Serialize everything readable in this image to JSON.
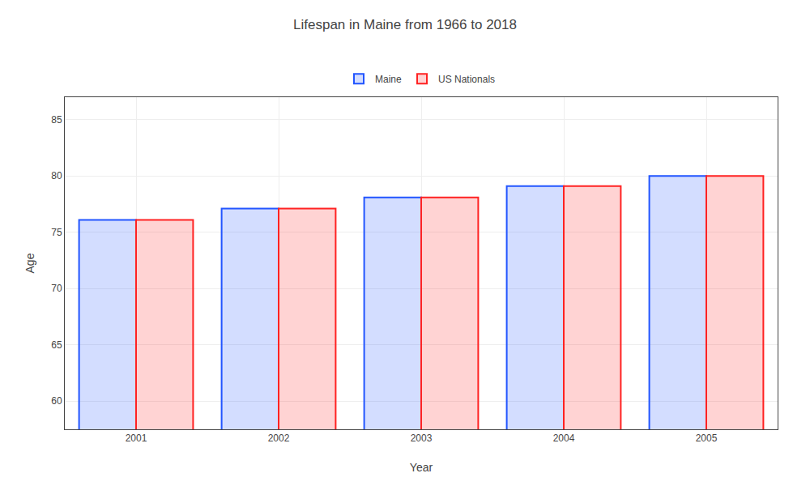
{
  "chart_data": {
    "type": "bar",
    "title": "Lifespan in Maine from 1966 to 2018",
    "xlabel": "Year",
    "ylabel": "Age",
    "categories": [
      "2001",
      "2002",
      "2003",
      "2004",
      "2005"
    ],
    "series": [
      {
        "name": "Maine",
        "color": "#2255ff",
        "values": [
          76.1,
          77.1,
          78.1,
          79.1,
          80.0
        ]
      },
      {
        "name": "US Nationals",
        "color": "#ff2222",
        "values": [
          76.1,
          77.1,
          78.1,
          79.1,
          80.0
        ]
      }
    ],
    "ylim": [
      57.5,
      87
    ],
    "yticks": [
      60,
      65,
      70,
      75,
      80,
      85
    ],
    "grid": true,
    "legend": "upper center"
  }
}
